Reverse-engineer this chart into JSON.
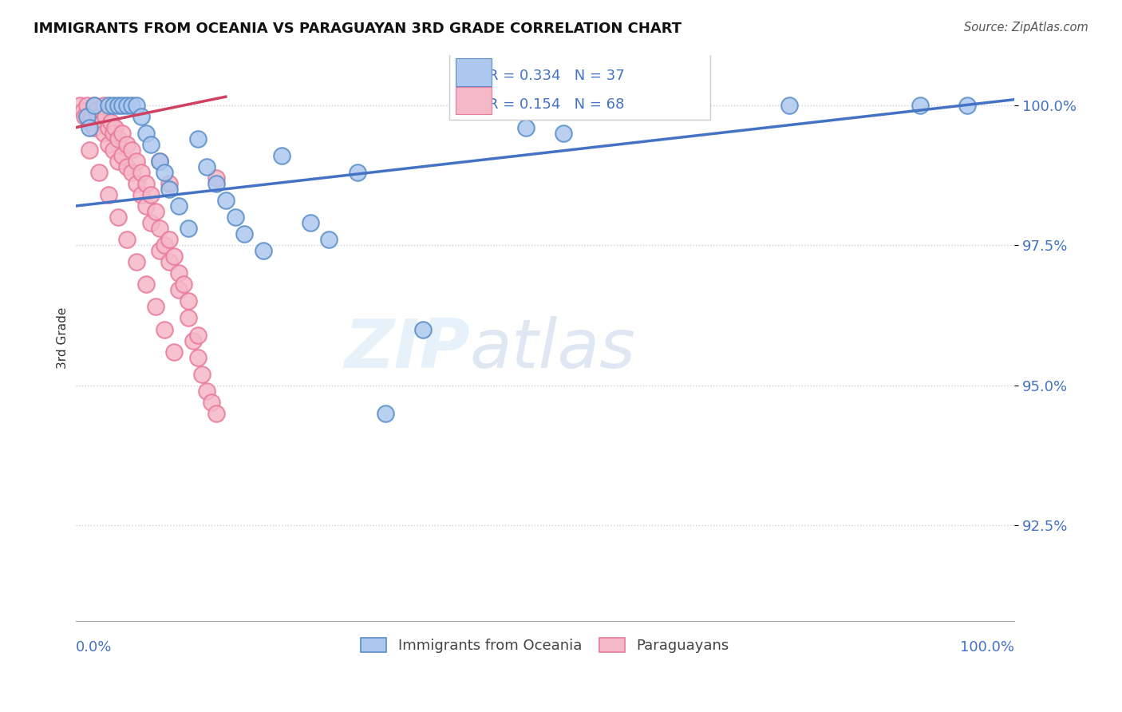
{
  "title": "IMMIGRANTS FROM OCEANIA VS PARAGUAYAN 3RD GRADE CORRELATION CHART",
  "source": "Source: ZipAtlas.com",
  "ylabel": "3rd Grade",
  "xmin": 0.0,
  "xmax": 100.0,
  "ymin": 90.8,
  "ymax": 100.9,
  "R_blue": 0.334,
  "N_blue": 37,
  "R_pink": 0.154,
  "N_pink": 68,
  "legend_label_blue": "Immigrants from Oceania",
  "legend_label_pink": "Paraguayans",
  "watermark_zip": "ZIP",
  "watermark_atlas": "atlas",
  "blue_color": "#adc8ee",
  "blue_edge": "#5a8ec8",
  "pink_color": "#f5b8c8",
  "pink_edge": "#e87a9a",
  "blue_line_color": "#4472c4",
  "pink_line_color": "#d04060",
  "grid_color": "#c8cfe0",
  "tick_label_color": "#4472c4",
  "blue_scatter_x": [
    1.2,
    1.5,
    2.0,
    3.5,
    4.0,
    4.5,
    5.0,
    5.5,
    6.0,
    6.5,
    7.0,
    7.5,
    8.0,
    9.0,
    9.5,
    10.0,
    11.0,
    12.0,
    13.0,
    14.0,
    15.0,
    16.0,
    17.0,
    18.0,
    20.0,
    22.0,
    25.0,
    27.0,
    30.0,
    33.0,
    37.0,
    52.0,
    76.0,
    90.0,
    95.0,
    48.0,
    62.0
  ],
  "blue_scatter_y": [
    99.8,
    99.6,
    100.0,
    100.0,
    100.0,
    100.0,
    100.0,
    100.0,
    100.0,
    100.0,
    99.8,
    99.5,
    99.3,
    99.0,
    98.8,
    98.5,
    98.2,
    97.8,
    99.4,
    98.9,
    98.6,
    98.3,
    98.0,
    97.7,
    97.4,
    99.1,
    97.9,
    97.6,
    98.8,
    94.5,
    96.0,
    99.5,
    100.0,
    100.0,
    100.0,
    99.6,
    100.0
  ],
  "pink_scatter_x": [
    0.5,
    0.8,
    1.0,
    1.2,
    1.5,
    1.7,
    2.0,
    2.0,
    2.2,
    2.5,
    2.8,
    3.0,
    3.0,
    3.2,
    3.5,
    3.5,
    3.8,
    4.0,
    4.0,
    4.2,
    4.5,
    4.5,
    5.0,
    5.0,
    5.5,
    5.5,
    6.0,
    6.0,
    6.5,
    6.5,
    7.0,
    7.0,
    7.5,
    7.5,
    8.0,
    8.0,
    8.5,
    9.0,
    9.0,
    9.5,
    10.0,
    10.0,
    10.5,
    11.0,
    11.0,
    11.5,
    12.0,
    12.0,
    12.5,
    13.0,
    13.0,
    13.5,
    14.0,
    14.5,
    15.0,
    15.0,
    1.5,
    2.5,
    3.5,
    4.5,
    5.5,
    6.5,
    7.5,
    8.5,
    9.5,
    10.5,
    9.0,
    10.0
  ],
  "pink_scatter_y": [
    100.0,
    99.9,
    99.8,
    100.0,
    99.7,
    99.8,
    100.0,
    99.6,
    99.9,
    99.8,
    99.7,
    100.0,
    99.5,
    99.8,
    99.6,
    99.3,
    99.7,
    99.5,
    99.2,
    99.6,
    99.4,
    99.0,
    99.5,
    99.1,
    99.3,
    98.9,
    99.2,
    98.8,
    99.0,
    98.6,
    98.8,
    98.4,
    98.6,
    98.2,
    98.4,
    97.9,
    98.1,
    97.8,
    97.4,
    97.5,
    97.6,
    97.2,
    97.3,
    97.0,
    96.7,
    96.8,
    96.5,
    96.2,
    95.8,
    95.9,
    95.5,
    95.2,
    94.9,
    94.7,
    94.5,
    98.7,
    99.2,
    98.8,
    98.4,
    98.0,
    97.6,
    97.2,
    96.8,
    96.4,
    96.0,
    95.6,
    99.0,
    98.6
  ],
  "blue_trendline_x": [
    0.0,
    100.0
  ],
  "blue_trendline_y": [
    98.2,
    100.1
  ],
  "pink_trendline_x": [
    0.0,
    16.0
  ],
  "pink_trendline_y": [
    99.6,
    100.15
  ],
  "ytick_positions": [
    92.5,
    95.0,
    97.5,
    100.0
  ],
  "ytick_labels": [
    "92.5%",
    "95.0%",
    "97.5%",
    "100.0%"
  ]
}
